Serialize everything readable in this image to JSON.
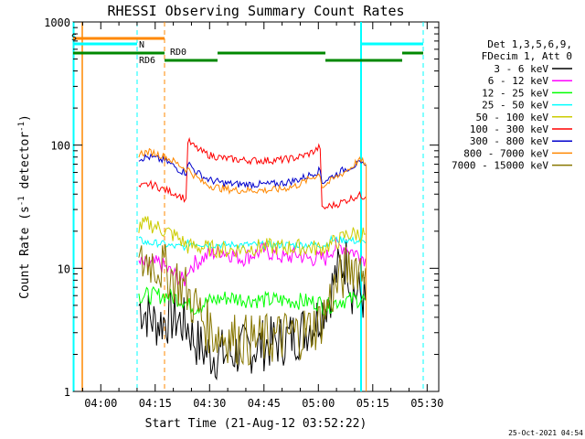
{
  "chart_data": {
    "type": "line",
    "title": "RHESSI Observing Summary Count Rates",
    "xlabel": "Start Time (21-Aug-12 03:52:22)",
    "ylabel_main": "Count Rate (s",
    "ylabel_sup1": "-1",
    "ylabel_mid": " detector",
    "ylabel_sup2": "-1",
    "ylabel_end": ")",
    "timestamp": "25-Oct-2021 04:54",
    "x_range_min": [
      230,
      1295
    ],
    "y_range": [
      1,
      1000
    ],
    "y_scale": "log",
    "x_ticks": [
      {
        "label": "04:00",
        "minute": 240
      },
      {
        "label": "04:15",
        "minute": 255
      },
      {
        "label": "04:30",
        "minute": 270
      },
      {
        "label": "04:45",
        "minute": 285
      },
      {
        "label": "05:00",
        "minute": 300
      },
      {
        "label": "05:15",
        "minute": 315
      },
      {
        "label": "05:30",
        "minute": 330
      }
    ],
    "y_ticks": [
      {
        "label": "1",
        "value": 1
      },
      {
        "label": "10",
        "value": 10
      },
      {
        "label": "100",
        "value": 100
      },
      {
        "label": "1000",
        "value": 1000
      }
    ],
    "legend_header": [
      "Det 1,3,5,6,9,",
      "FDecim 1, Att 0"
    ],
    "legend_position": "outside-right",
    "series": [
      {
        "name": "3 - 6 keV",
        "color": "#000000",
        "points": [
          [
            250.5,
            5
          ],
          [
            255,
            3.6
          ],
          [
            260,
            4
          ],
          [
            264,
            3.4
          ],
          [
            266,
            2.6
          ],
          [
            268,
            2.2
          ],
          [
            270,
            2
          ],
          [
            275,
            2
          ],
          [
            280,
            2.2
          ],
          [
            285,
            2.4
          ],
          [
            290,
            2.6
          ],
          [
            295,
            3
          ],
          [
            300,
            4
          ],
          [
            303,
            6
          ],
          [
            305,
            9
          ],
          [
            307,
            11
          ],
          [
            308,
            12
          ],
          [
            309,
            7
          ],
          [
            310,
            6.5
          ],
          [
            312,
            6
          ],
          [
            313,
            5.5
          ]
        ]
      },
      {
        "name": "6 - 12 keV",
        "color": "#ff00ff",
        "points": [
          [
            250.5,
            11
          ],
          [
            253,
            10.5
          ],
          [
            256,
            11
          ],
          [
            258,
            10
          ],
          [
            260,
            9
          ],
          [
            262,
            8
          ],
          [
            263.5,
            8
          ],
          [
            264,
            10
          ],
          [
            266,
            11
          ],
          [
            268,
            12
          ],
          [
            270,
            13
          ],
          [
            273,
            14
          ],
          [
            276,
            13
          ],
          [
            279,
            12
          ],
          [
            282,
            13
          ],
          [
            285,
            14
          ],
          [
            288,
            13
          ],
          [
            291,
            12
          ],
          [
            294,
            13
          ],
          [
            297,
            12
          ],
          [
            300,
            12
          ],
          [
            302,
            12
          ],
          [
            303.5,
            14
          ],
          [
            305,
            15
          ],
          [
            307,
            15
          ],
          [
            309,
            14
          ],
          [
            311,
            13
          ],
          [
            312,
            12.5
          ],
          [
            313,
            12
          ]
        ]
      },
      {
        "name": "12 - 25 keV",
        "color": "#00ff00",
        "points": [
          [
            250.5,
            6
          ],
          [
            253,
            6
          ],
          [
            256,
            6
          ],
          [
            258,
            6
          ],
          [
            260,
            5.8
          ],
          [
            263,
            5.5
          ],
          [
            264,
            5
          ],
          [
            266,
            4.8
          ],
          [
            270,
            5.4
          ],
          [
            275,
            5.8
          ],
          [
            280,
            5.6
          ],
          [
            285,
            5.5
          ],
          [
            290,
            5.5
          ],
          [
            295,
            5.4
          ],
          [
            300,
            5.3
          ],
          [
            302,
            4.8
          ],
          [
            304,
            5.2
          ],
          [
            306,
            5.5
          ],
          [
            308,
            5.5
          ],
          [
            310,
            5.6
          ],
          [
            312,
            5.6
          ],
          [
            313,
            5.5
          ]
        ]
      },
      {
        "name": "25 - 50 keV",
        "color": "#00ffff",
        "points": [
          [
            250.5,
            17
          ],
          [
            253,
            16
          ],
          [
            256,
            16
          ],
          [
            258,
            15.5
          ],
          [
            260,
            15
          ],
          [
            263,
            15
          ],
          [
            263.5,
            14.5
          ],
          [
            264,
            16
          ],
          [
            266,
            16
          ],
          [
            270,
            15.5
          ],
          [
            275,
            15.5
          ],
          [
            280,
            15.5
          ],
          [
            285,
            15.5
          ],
          [
            290,
            15.5
          ],
          [
            295,
            15.5
          ],
          [
            300,
            15.5
          ],
          [
            302,
            15.5
          ],
          [
            303.5,
            17
          ],
          [
            305,
            17
          ],
          [
            308,
            17
          ],
          [
            311,
            16.5
          ],
          [
            313,
            16
          ]
        ]
      },
      {
        "name": "50 - 100 keV",
        "color": "#cccc00",
        "points": [
          [
            250.5,
            22
          ],
          [
            253,
            23
          ],
          [
            255,
            22
          ],
          [
            258,
            20
          ],
          [
            261,
            18
          ],
          [
            263,
            16
          ],
          [
            264,
            15
          ],
          [
            266,
            15
          ],
          [
            270,
            14.5
          ],
          [
            275,
            14
          ],
          [
            280,
            14.5
          ],
          [
            285,
            15
          ],
          [
            290,
            14.8
          ],
          [
            295,
            14.8
          ],
          [
            300,
            14.5
          ],
          [
            302,
            15
          ],
          [
            304,
            16
          ],
          [
            306,
            17
          ],
          [
            308,
            19
          ],
          [
            310,
            19
          ],
          [
            312,
            19
          ],
          [
            313,
            19
          ]
        ]
      },
      {
        "name": "100 - 300 keV",
        "color": "#ff0000",
        "points": [
          [
            250.5,
            45
          ],
          [
            253,
            48
          ],
          [
            255,
            47
          ],
          [
            257,
            44
          ],
          [
            259,
            42
          ],
          [
            261,
            40
          ],
          [
            263,
            37
          ],
          [
            263.5,
            36
          ],
          [
            264,
            108
          ],
          [
            266,
            96
          ],
          [
            268,
            88
          ],
          [
            270,
            83
          ],
          [
            274,
            78
          ],
          [
            278,
            76
          ],
          [
            282,
            75
          ],
          [
            286,
            75
          ],
          [
            290,
            76
          ],
          [
            294,
            79
          ],
          [
            297,
            84
          ],
          [
            299,
            90
          ],
          [
            300.5,
            97
          ],
          [
            301,
            30
          ],
          [
            303,
            32
          ],
          [
            305,
            33
          ],
          [
            307,
            35
          ],
          [
            309,
            37
          ],
          [
            311,
            39
          ],
          [
            313,
            38
          ]
        ]
      },
      {
        "name": "300 - 800 keV",
        "color": "#0000cc",
        "points": [
          [
            250.5,
            78
          ],
          [
            253,
            80
          ],
          [
            255,
            78
          ],
          [
            258,
            74
          ],
          [
            260,
            68
          ],
          [
            262,
            62
          ],
          [
            263.5,
            60
          ],
          [
            264,
            72
          ],
          [
            266,
            62
          ],
          [
            268,
            56
          ],
          [
            270,
            52
          ],
          [
            274,
            49
          ],
          [
            278,
            48
          ],
          [
            282,
            48
          ],
          [
            286,
            48
          ],
          [
            290,
            49
          ],
          [
            294,
            52
          ],
          [
            297,
            56
          ],
          [
            299,
            60
          ],
          [
            300.5,
            62
          ],
          [
            301,
            50
          ],
          [
            303,
            54
          ],
          [
            305,
            58
          ],
          [
            307,
            63
          ],
          [
            309,
            67
          ],
          [
            311,
            70
          ],
          [
            313,
            68
          ]
        ]
      },
      {
        "name": "800 - 7000 keV",
        "color": "#ff8800",
        "points": [
          [
            250.5,
            85
          ],
          [
            253,
            88
          ],
          [
            255,
            86
          ],
          [
            258,
            80
          ],
          [
            260,
            74
          ],
          [
            262,
            68
          ],
          [
            263.5,
            64
          ],
          [
            264,
            64
          ],
          [
            266,
            56
          ],
          [
            268,
            50
          ],
          [
            270,
            47
          ],
          [
            274,
            44
          ],
          [
            278,
            43
          ],
          [
            282,
            43
          ],
          [
            286,
            43
          ],
          [
            290,
            44
          ],
          [
            294,
            47
          ],
          [
            297,
            52
          ],
          [
            299,
            56
          ],
          [
            300.5,
            58
          ],
          [
            301,
            46
          ],
          [
            303,
            50
          ],
          [
            305,
            55
          ],
          [
            307,
            60
          ],
          [
            309,
            66
          ],
          [
            311,
            75
          ],
          [
            313,
            72
          ]
        ]
      },
      {
        "name": "7000 - 15000 keV",
        "color": "#887700",
        "points": [
          [
            250.5,
            10
          ],
          [
            253,
            12
          ],
          [
            255,
            11
          ],
          [
            257,
            10
          ],
          [
            259,
            9
          ],
          [
            261,
            8
          ],
          [
            263,
            7
          ],
          [
            265,
            5.5
          ],
          [
            267,
            4.5
          ],
          [
            269,
            3.5
          ],
          [
            271,
            3
          ],
          [
            275,
            2.8
          ],
          [
            280,
            2.6
          ],
          [
            285,
            2.6
          ],
          [
            290,
            2.8
          ],
          [
            295,
            3
          ],
          [
            300,
            3.5
          ],
          [
            302,
            4.5
          ],
          [
            304,
            6.5
          ],
          [
            306,
            8
          ],
          [
            308,
            10
          ],
          [
            310,
            11
          ],
          [
            312,
            10
          ],
          [
            313,
            10
          ]
        ]
      }
    ],
    "segments": {
      "saa_label": "S",
      "night_label": "N",
      "rd_labels": [
        "RD0",
        "RD6"
      ]
    }
  }
}
